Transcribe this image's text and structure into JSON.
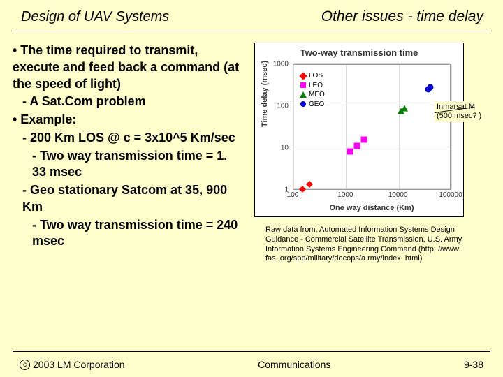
{
  "header": {
    "left": "Design of UAV Systems",
    "right": "Other issues - time delay"
  },
  "bullets": [
    {
      "indent": 0,
      "text": "• The time required to transmit, execute and feed back a command (at the speed of light)"
    },
    {
      "indent": 1,
      "text": "- A Sat.Com problem"
    },
    {
      "indent": 0,
      "text": "• Example:"
    },
    {
      "indent": 1,
      "text": "- 200 Km LOS @ c = 3x10^5 Km/sec"
    },
    {
      "indent": 2,
      "text": "- Two way transmission time = 1. 33 msec"
    },
    {
      "indent": 1,
      "text": "- Geo stationary Satcom at 35, 900 Km"
    },
    {
      "indent": 2,
      "text": "- Two way transmission time = 240 msec"
    }
  ],
  "chart": {
    "title": "Two-way transmission time",
    "ylabel": "Time delay (msec)",
    "xlabel": "One way distance (Km)",
    "x_log_range": [
      100,
      100000
    ],
    "y_log_range": [
      1,
      1000
    ],
    "x_ticks": [
      "100",
      "1000",
      "10000",
      "100000"
    ],
    "y_ticks": [
      "1",
      "10",
      "100",
      "1000"
    ],
    "legend": [
      {
        "label": "LOS",
        "marker": "diamond",
        "color": "#ff0000"
      },
      {
        "label": "LEO",
        "marker": "square",
        "color": "#ff00ff"
      },
      {
        "label": "MEO",
        "marker": "triangle",
        "color": "#008000"
      },
      {
        "label": "GEO",
        "marker": "circle",
        "color": "#0000cc"
      }
    ],
    "points": [
      {
        "series": "LOS",
        "x": 150,
        "y": 1.0
      },
      {
        "series": "LOS",
        "x": 200,
        "y": 1.3
      },
      {
        "series": "LEO",
        "x": 1200,
        "y": 8
      },
      {
        "series": "LEO",
        "x": 1600,
        "y": 11
      },
      {
        "series": "LEO",
        "x": 2200,
        "y": 15
      },
      {
        "series": "MEO",
        "x": 11000,
        "y": 73
      },
      {
        "series": "MEO",
        "x": 13000,
        "y": 87
      },
      {
        "series": "GEO",
        "x": 36000,
        "y": 240
      },
      {
        "series": "GEO",
        "x": 40000,
        "y": 267
      }
    ],
    "grid_color": "#dddddd",
    "border_color": "#999999",
    "background": "#ffffff"
  },
  "callout": {
    "line1": "Inmarsat M",
    "line2": "(500 msec? )"
  },
  "citation": "Raw data from, Automated Information Systems Design Guidance - Commercial Satellite Transmission, U.S. Army Information Systems Engineering Command (http: //www. fas. org/spp/military/docops/a rmy/index. html)",
  "footer": {
    "copyright_symbol": "c",
    "copyright": "2003 LM Corporation",
    "center": "Communications",
    "right": "9-38"
  },
  "colors": {
    "page_bg": "#ffffcc",
    "text": "#000000"
  }
}
